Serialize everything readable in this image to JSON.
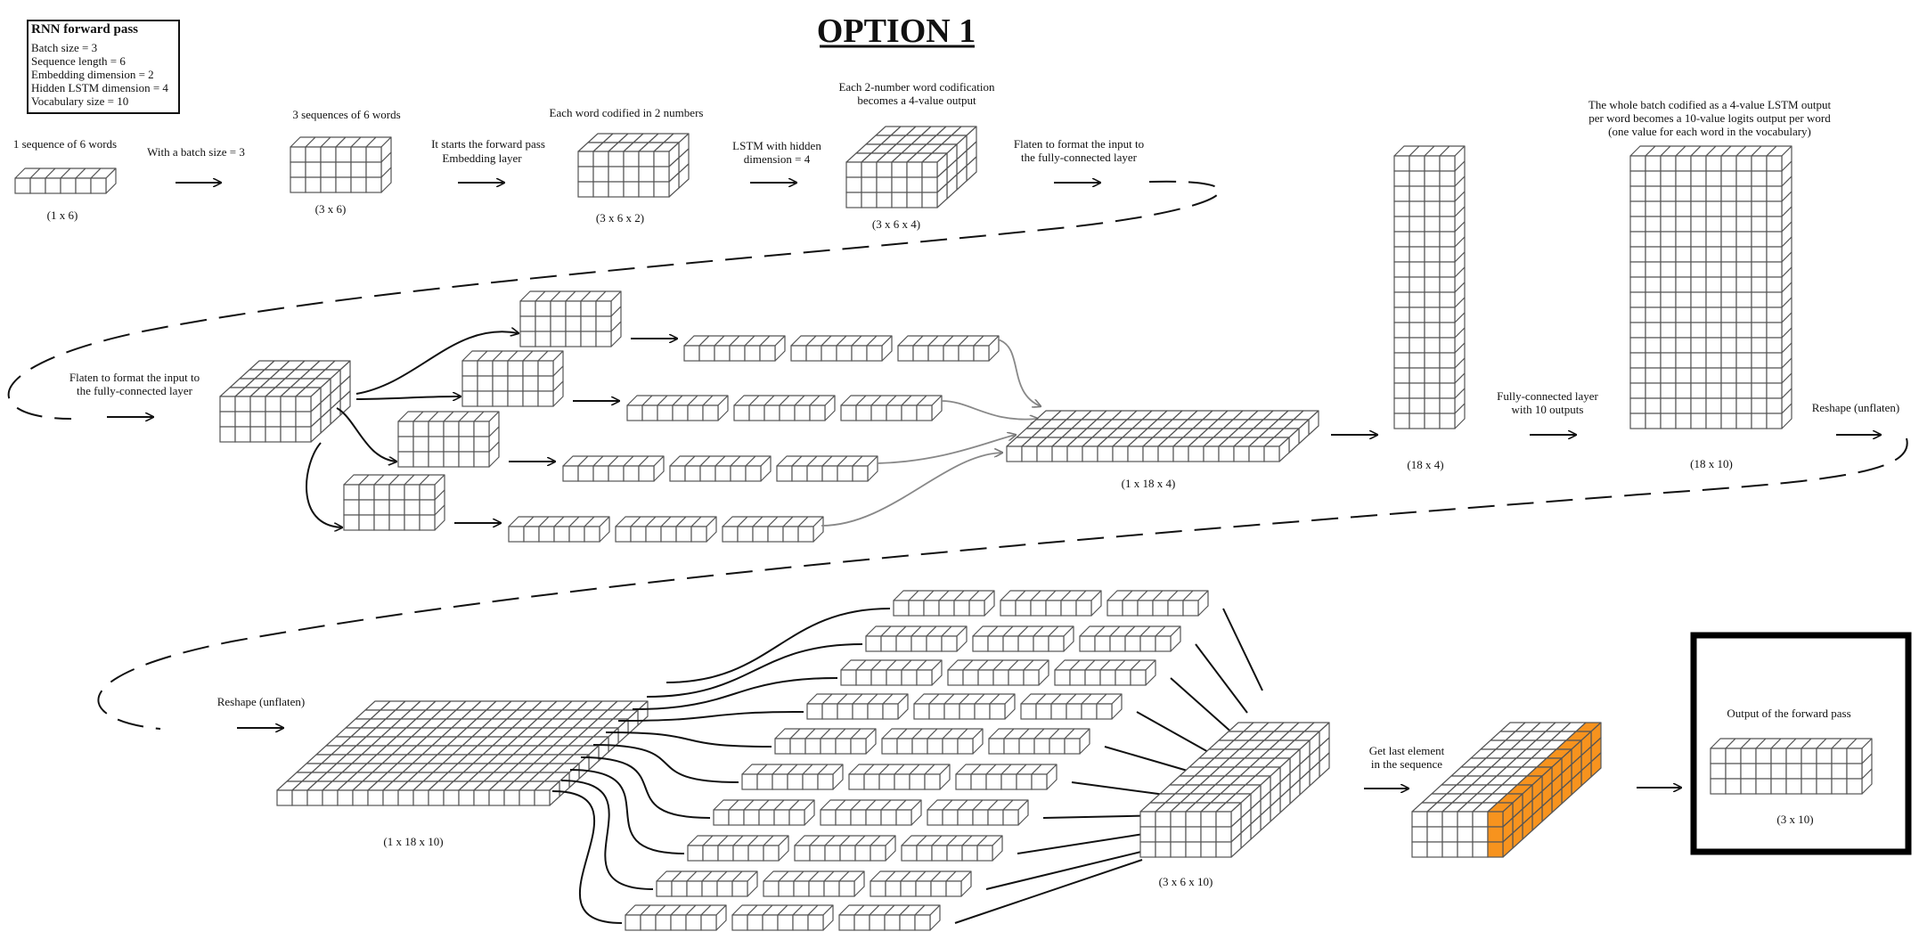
{
  "title": "OPTION 1",
  "info_box": {
    "heading": "RNN forward pass",
    "lines": [
      "Batch size = 3",
      "Sequence length = 6",
      "Embedding dimension = 2",
      "Hidden LSTM dimension = 4",
      "Vocabulary size = 10"
    ]
  },
  "row1": {
    "step1": {
      "caption": "1 sequence of 6 words",
      "dim": "(1 x 6)"
    },
    "arrow1": "With a batch size = 3",
    "step2": {
      "caption": "3 sequences of 6 words",
      "dim": "(3 x 6)"
    },
    "arrow2": [
      "It starts the forward pass",
      "Embedding layer"
    ],
    "step3": {
      "caption": "Each word codified in 2 numbers",
      "dim": "(3 x 6 x 2)"
    },
    "arrow3": [
      "LSTM with hidden",
      "dimension = 4"
    ],
    "step4": {
      "caption": [
        "Each 2-number word codification",
        "becomes a 4-value output"
      ],
      "dim": "(3 x 6 x 4)"
    },
    "arrow4": [
      "Flaten to format the input to",
      "the fully-connected layer"
    ]
  },
  "row2": {
    "arrow0": [
      "Flaten to format the input to",
      "the fully-connected layer"
    ],
    "flat_dim": "(1 x 18 x 4)",
    "col1_dim": "(18 x 4)",
    "fc_label": [
      "Fully-connected layer",
      "with 10 outputs"
    ],
    "col2_caption": [
      "The whole batch codified as a 4-value LSTM output",
      "per word becomes a 10-value logits output per word",
      "(one value for each word in the vocabulary)"
    ],
    "col2_dim": "(18 x 10)",
    "reshape": "Reshape (unflaten)"
  },
  "row3": {
    "reshape": "Reshape (unflaten)",
    "slab_dim": "(1 x 18 x 10)",
    "stack_dim": "(3 x 6 x 10)",
    "last_label": [
      "Get last element",
      "in the sequence"
    ],
    "output_caption": "Output of the forward pass",
    "output_dim": "(3 x 10)"
  },
  "colors": {
    "stroke": "#555555",
    "ink": "#111111",
    "highlight": "#f7931e"
  }
}
